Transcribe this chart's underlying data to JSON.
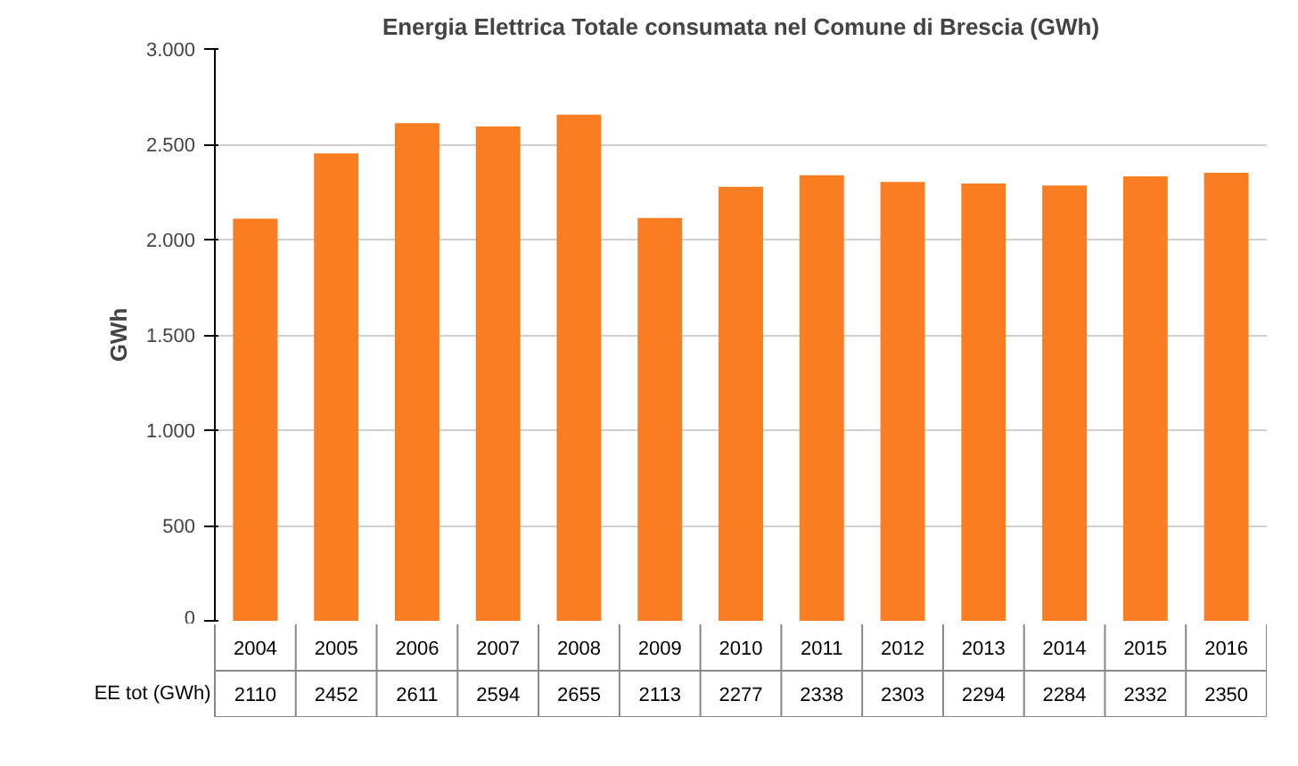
{
  "chart_data": {
    "type": "bar",
    "title": "Energia Elettrica Totale consumata nel Comune di Brescia (GWh)",
    "ylabel": "GWh",
    "categories": [
      "2004",
      "2005",
      "2006",
      "2007",
      "2008",
      "2009",
      "2010",
      "2011",
      "2012",
      "2013",
      "2014",
      "2015",
      "2016"
    ],
    "series": [
      {
        "name": "EE tot (GWh)",
        "color": "#fb7d22",
        "values": [
          2110,
          2452,
          2611,
          2594,
          2655,
          2113,
          2277,
          2338,
          2303,
          2294,
          2284,
          2332,
          2350
        ]
      }
    ],
    "ylim": [
      0,
      3000
    ],
    "yticks": [
      {
        "value": 0,
        "label": "0"
      },
      {
        "value": 500,
        "label": "500"
      },
      {
        "value": 1000,
        "label": "1.000"
      },
      {
        "value": 1500,
        "label": "1.500"
      },
      {
        "value": 2000,
        "label": "2.000"
      },
      {
        "value": 2500,
        "label": "2.500"
      },
      {
        "value": 3000,
        "label": "3.000"
      }
    ],
    "grid": "y",
    "data_labels": true
  }
}
